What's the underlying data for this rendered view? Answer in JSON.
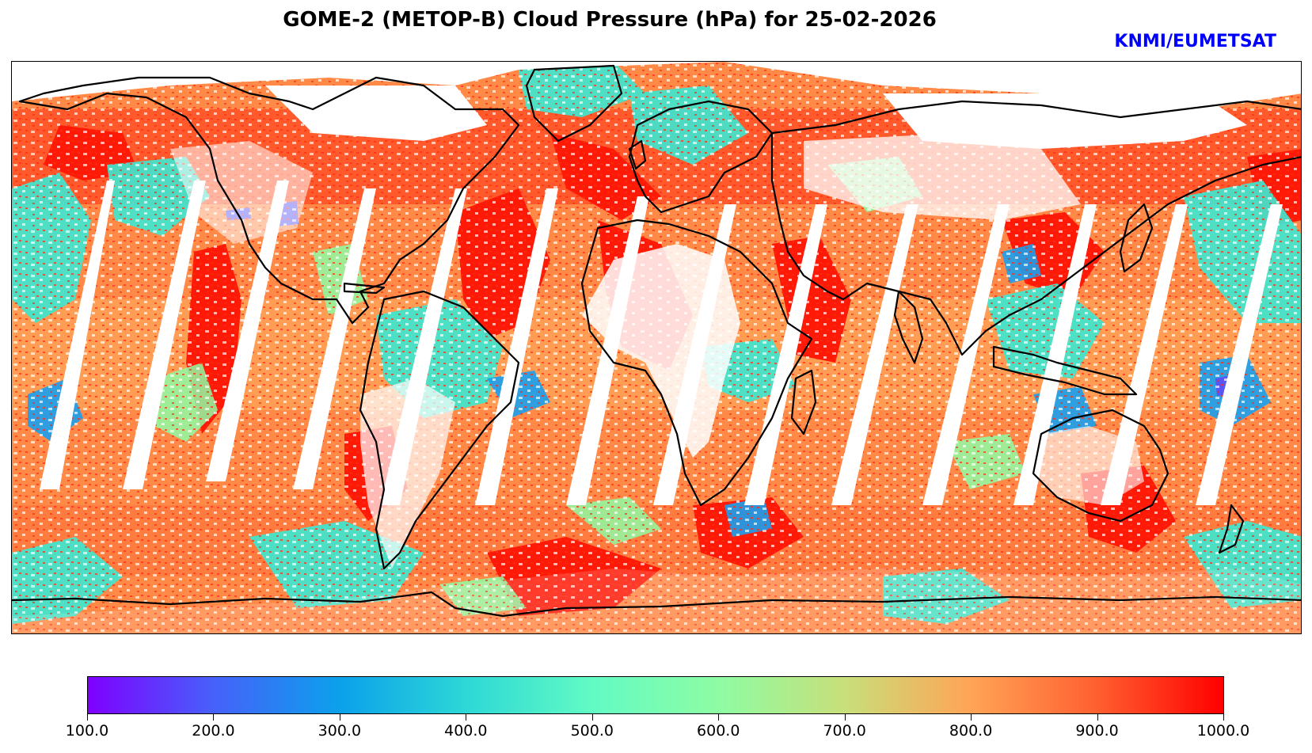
{
  "title": "GOME-2 (METOP-B) Cloud Pressure (hPa) for 25-02-2026",
  "credit": "KNMI/EUMETSAT",
  "credit_color": "#0000ff",
  "map": {
    "projection": "plate-carree",
    "extent_lon": [
      -180,
      180
    ],
    "extent_lat": [
      -90,
      90
    ],
    "coastline_color": "#000000"
  },
  "colorbar": {
    "colormap": "rainbow",
    "min": 100.0,
    "max": 1000.0,
    "tick_labels": [
      "100.0",
      "200.0",
      "300.0",
      "400.0",
      "500.0",
      "600.0",
      "700.0",
      "800.0",
      "900.0",
      "1000.0"
    ],
    "colors": [
      "#7f00ff",
      "#4661fa",
      "#0ba1eb",
      "#2dd8d6",
      "#62fbc4",
      "#8efca3",
      "#c8df7a",
      "#ffa456",
      "#ff5f30",
      "#ff0000"
    ]
  }
}
